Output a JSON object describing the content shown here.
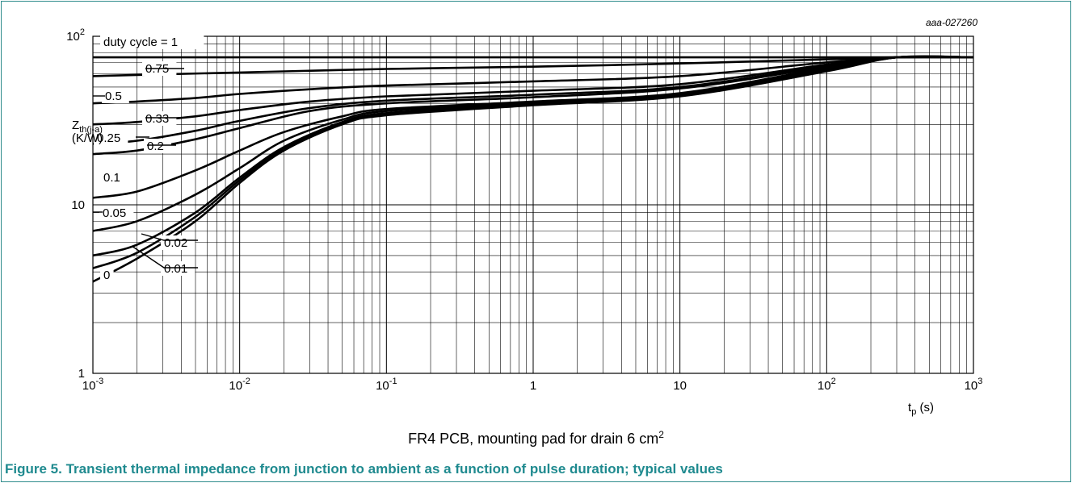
{
  "figure": {
    "code": "aaa-027260",
    "caption": "Figure 5. Transient thermal impedance from junction to ambient as a function of pulse duration; typical values",
    "note_text": "FR4 PCB, mounting pad for drain 6 cm",
    "note_sup": "2",
    "frame_color": "#2e8b8b",
    "caption_color": "#1f8a8f"
  },
  "chart_data": {
    "type": "line",
    "x_scale": "log",
    "y_scale": "log",
    "xlim": [
      0.001,
      1000
    ],
    "ylim": [
      1,
      100
    ],
    "grid": true,
    "x_ticks": [
      {
        "value": 0.001,
        "base": "10",
        "exp": "-3"
      },
      {
        "value": 0.01,
        "base": "10",
        "exp": "-2"
      },
      {
        "value": 0.1,
        "base": "10",
        "exp": "-1"
      },
      {
        "value": 1,
        "base": "1",
        "exp": ""
      },
      {
        "value": 10,
        "base": "10",
        "exp": ""
      },
      {
        "value": 100,
        "base": "10",
        "exp": "2"
      },
      {
        "value": 1000,
        "base": "10",
        "exp": "3"
      }
    ],
    "y_ticks": [
      {
        "value": 1,
        "base": "1",
        "exp": ""
      },
      {
        "value": 10,
        "base": "10",
        "exp": ""
      },
      {
        "value": 100,
        "base": "10",
        "exp": "2"
      }
    ],
    "xlabel": {
      "main": "t",
      "sub": "p",
      "rest": " (s)"
    },
    "ylabel": {
      "main": "Z",
      "sub": "th(j-a)",
      "unit": "(K/W)"
    },
    "series": [
      {
        "name": "duty cycle = 1",
        "x": [
          0.001,
          1000
        ],
        "y": [
          75,
          75
        ]
      },
      {
        "name": "0.75",
        "x": [
          0.001,
          0.002,
          0.01,
          0.1,
          1,
          10,
          100,
          300,
          1000
        ],
        "y": [
          58,
          59,
          61,
          64,
          66,
          69,
          73,
          75,
          75
        ]
      },
      {
        "name": "0.5",
        "x": [
          0.001,
          0.002,
          0.005,
          0.01,
          0.03,
          0.1,
          1,
          10,
          100,
          300,
          1000
        ],
        "y": [
          40,
          41,
          43,
          45.5,
          48.5,
          51,
          54,
          58,
          70,
          75,
          75
        ]
      },
      {
        "name": "0.33",
        "x": [
          0.001,
          0.002,
          0.005,
          0.01,
          0.03,
          0.1,
          1,
          10,
          100,
          300,
          1000
        ],
        "y": [
          30,
          31,
          33.5,
          36.5,
          41,
          44,
          47.5,
          52,
          68,
          75,
          75
        ]
      },
      {
        "name": "0.25",
        "x": [
          0.001,
          0.002,
          0.005,
          0.01,
          0.03,
          0.1,
          1,
          10,
          100,
          300,
          1000
        ],
        "y": [
          23,
          24,
          27.5,
          31.5,
          37.5,
          41.5,
          45,
          50,
          67,
          75,
          75
        ]
      },
      {
        "name": "0.2",
        "x": [
          0.001,
          0.002,
          0.005,
          0.01,
          0.03,
          0.1,
          1,
          10,
          100,
          300,
          1000
        ],
        "y": [
          20,
          21,
          24.5,
          28.5,
          36,
          40,
          43.5,
          49,
          66,
          75,
          75
        ]
      },
      {
        "name": "0.1",
        "x": [
          0.001,
          0.002,
          0.005,
          0.01,
          0.02,
          0.05,
          0.1,
          1,
          10,
          100,
          300,
          1000
        ],
        "y": [
          11,
          12,
          16,
          21,
          27,
          33.5,
          37,
          41,
          46,
          65,
          75,
          75
        ]
      },
      {
        "name": "0.05",
        "x": [
          0.001,
          0.002,
          0.005,
          0.01,
          0.02,
          0.05,
          0.1,
          1,
          10,
          100,
          300,
          1000
        ],
        "y": [
          7,
          8,
          11.5,
          16.5,
          24,
          32,
          36,
          40.5,
          45.5,
          64,
          75,
          75
        ]
      },
      {
        "name": "0.02",
        "x": [
          0.001,
          0.002,
          0.005,
          0.01,
          0.02,
          0.05,
          0.1,
          1,
          10,
          100,
          300,
          1000
        ],
        "y": [
          5,
          5.8,
          9,
          14.5,
          22,
          31,
          35,
          40,
          45,
          63,
          75,
          75
        ]
      },
      {
        "name": "0.01",
        "x": [
          0.001,
          0.002,
          0.005,
          0.01,
          0.02,
          0.05,
          0.1,
          1,
          10,
          100,
          300,
          1000
        ],
        "y": [
          4.2,
          5.2,
          8.5,
          14,
          21.5,
          30.5,
          34.5,
          39.5,
          44.5,
          62.5,
          75,
          75
        ]
      },
      {
        "name": "0",
        "x": [
          0.001,
          0.002,
          0.005,
          0.01,
          0.02,
          0.05,
          0.1,
          1,
          10,
          100,
          300,
          1000
        ],
        "y": [
          3.5,
          4.8,
          8,
          13.5,
          21,
          30,
          34,
          39,
          44,
          62,
          75,
          75
        ]
      }
    ]
  }
}
